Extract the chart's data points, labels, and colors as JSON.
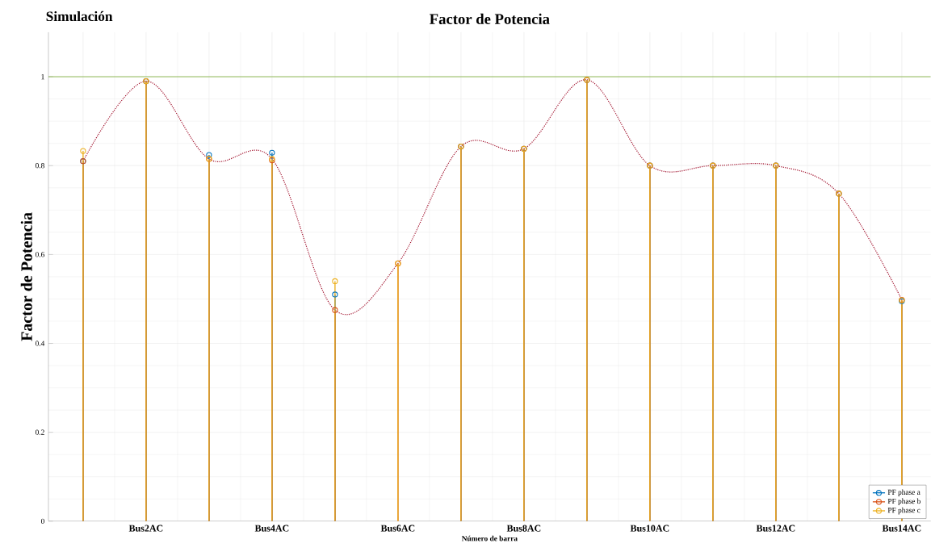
{
  "chart_data": {
    "type": "lollipop",
    "title": "Factor de Potencia",
    "xlabel": "Número de barra",
    "ylabel": "Factor de Potencia",
    "annotations": [
      "Simulación"
    ],
    "categories": [
      null,
      "Bus2AC",
      null,
      "Bus4AC",
      null,
      "Bus6AC",
      null,
      "Bus8AC",
      null,
      "Bus10AC",
      null,
      "Bus12AC",
      null,
      "Bus14AC"
    ],
    "series": [
      {
        "name": "PF phase a",
        "color": "#0072bd",
        "values": [
          0.81,
          0.99,
          0.824,
          0.829,
          0.51,
          null,
          0.843,
          0.838,
          0.993,
          0.8,
          0.8,
          0.8,
          0.737,
          0.495
        ]
      },
      {
        "name": "PF phase b",
        "color": "#d95319",
        "values": [
          0.81,
          0.99,
          0.815,
          0.812,
          0.475,
          0.58,
          0.843,
          0.838,
          0.993,
          0.8,
          0.8,
          0.8,
          0.737,
          0.498
        ]
      },
      {
        "name": "PF phase c",
        "color": "#edb120",
        "values": [
          0.833,
          0.99,
          0.815,
          0.815,
          0.54,
          0.58,
          0.843,
          0.838,
          0.993,
          0.8,
          0.8,
          0.8,
          0.737,
          0.497
        ]
      },
      {
        "type": "line",
        "line_style": "dotted",
        "marker": "none",
        "color": "#a2142f",
        "values": [
          0.81,
          0.99,
          0.815,
          0.815,
          0.475,
          0.58,
          0.843,
          0.838,
          0.993,
          0.8,
          0.8,
          0.8,
          0.737,
          0.498
        ]
      }
    ],
    "ylim": [
      0,
      1.1
    ],
    "yticks": [
      0,
      0.2,
      0.4,
      0.6,
      0.8,
      1
    ],
    "grid": true,
    "marker": "circle",
    "legend": "bottom right",
    "ref_lines": [
      {
        "axis": "y",
        "value": 1,
        "color": "#77ac30"
      }
    ]
  }
}
